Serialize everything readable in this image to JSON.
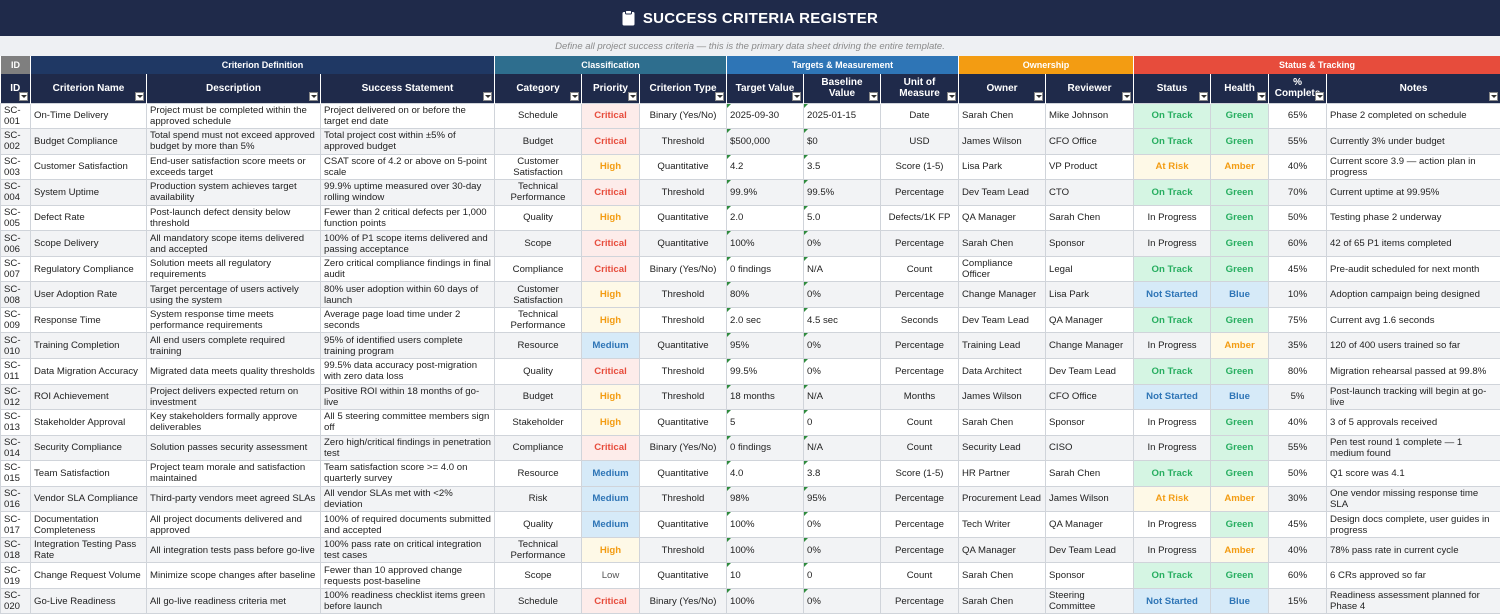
{
  "header": {
    "title": "SUCCESS CRITERIA REGISTER",
    "subtitle": "Define all project success criteria — this is the primary data sheet driving the entire template."
  },
  "groups": [
    {
      "label": "ID",
      "color": "#7f7f7f"
    },
    {
      "label": "Criterion Definition",
      "color": "#1f3864"
    },
    {
      "label": "Classification",
      "color": "#2e6e8e"
    },
    {
      "label": "Targets & Measurement",
      "color": "#2e75b6"
    },
    {
      "label": "Ownership",
      "color": "#f39c12"
    },
    {
      "label": "Status & Tracking",
      "color": "#e74c3c"
    }
  ],
  "columns": [
    "ID",
    "Criterion Name",
    "Description",
    "Success Statement",
    "Category",
    "Priority",
    "Criterion Type",
    "Target Value",
    "Baseline Value",
    "Unit of Measure",
    "Owner",
    "Reviewer",
    "Status",
    "Health",
    "% Complete",
    "Notes"
  ],
  "cell_colors": {
    "Critical": [
      "#e74c3c",
      "#fdecea"
    ],
    "High": [
      "#f39c12",
      "#fef9e7"
    ],
    "Medium": [
      "#2e75b6",
      "#d6eaf8"
    ],
    "Low": [
      "#555555",
      ""
    ],
    "On Track": [
      "#27ae60",
      "#d5f5e3"
    ],
    "At Risk": [
      "#f39c12",
      "#fef9e7"
    ],
    "Not Started": [
      "#2e75b6",
      "#d6eaf8"
    ],
    "Green": [
      "#27ae60",
      "#d5f5e3"
    ],
    "Amber": [
      "#f39c12",
      "#fef9e7"
    ],
    "Blue": [
      "#2e75b6",
      "#d6eaf8"
    ]
  },
  "table": {
    "rows": [
      [
        "SC-001",
        "On-Time Delivery",
        "Project must be completed within the approved schedule",
        "Project delivered on or before the target end date",
        "Schedule",
        "Critical",
        "Binary (Yes/No)",
        "2025-09-30",
        "2025-01-15",
        "Date",
        "Sarah Chen",
        "Mike Johnson",
        "On Track",
        "Green",
        "65%",
        "Phase 2 completed on schedule"
      ],
      [
        "SC-002",
        "Budget Compliance",
        "Total spend must not exceed approved budget by more than 5%",
        "Total project cost within ±5% of approved budget",
        "Budget",
        "Critical",
        "Threshold",
        "$500,000",
        "$0",
        "USD",
        "James Wilson",
        "CFO Office",
        "On Track",
        "Green",
        "55%",
        "Currently 3% under budget"
      ],
      [
        "SC-003",
        "Customer Satisfaction",
        "End-user satisfaction score meets or exceeds target",
        "CSAT score of 4.2 or above on 5-point scale",
        "Customer Satisfaction",
        "High",
        "Quantitative",
        "4.2",
        "3.5",
        "Score (1-5)",
        "Lisa Park",
        "VP Product",
        "At Risk",
        "Amber",
        "40%",
        "Current score 3.9 — action plan in progress"
      ],
      [
        "SC-004",
        "System Uptime",
        "Production system achieves target availability",
        "99.9% uptime measured over 30-day rolling window",
        "Technical Performance",
        "Critical",
        "Threshold",
        "99.9%",
        "99.5%",
        "Percentage",
        "Dev Team Lead",
        "CTO",
        "On Track",
        "Green",
        "70%",
        "Current uptime at 99.95%"
      ],
      [
        "SC-005",
        "Defect Rate",
        "Post-launch defect density below threshold",
        "Fewer than 2 critical defects per 1,000 function points",
        "Quality",
        "High",
        "Quantitative",
        "2.0",
        "5.0",
        "Defects/1K FP",
        "QA Manager",
        "Sarah Chen",
        "In Progress",
        "Green",
        "50%",
        "Testing phase 2 underway"
      ],
      [
        "SC-006",
        "Scope Delivery",
        "All mandatory scope items delivered and accepted",
        "100% of P1 scope items delivered and passing acceptance",
        "Scope",
        "Critical",
        "Quantitative",
        "100%",
        "0%",
        "Percentage",
        "Sarah Chen",
        "Sponsor",
        "In Progress",
        "Green",
        "60%",
        "42 of 65 P1 items completed"
      ],
      [
        "SC-007",
        "Regulatory Compliance",
        "Solution meets all regulatory requirements",
        "Zero critical compliance findings in final audit",
        "Compliance",
        "Critical",
        "Binary (Yes/No)",
        "0 findings",
        "N/A",
        "Count",
        "Compliance Officer",
        "Legal",
        "On Track",
        "Green",
        "45%",
        "Pre-audit scheduled for next month"
      ],
      [
        "SC-008",
        "User Adoption Rate",
        "Target percentage of users actively using the system",
        "80% user adoption within 60 days of launch",
        "Customer Satisfaction",
        "High",
        "Threshold",
        "80%",
        "0%",
        "Percentage",
        "Change Manager",
        "Lisa Park",
        "Not Started",
        "Blue",
        "10%",
        "Adoption campaign being designed"
      ],
      [
        "SC-009",
        "Response Time",
        "System response time meets performance requirements",
        "Average page load time under 2 seconds",
        "Technical Performance",
        "High",
        "Threshold",
        "2.0 sec",
        "4.5 sec",
        "Seconds",
        "Dev Team Lead",
        "QA Manager",
        "On Track",
        "Green",
        "75%",
        "Current avg 1.6 seconds"
      ],
      [
        "SC-010",
        "Training Completion",
        "All end users complete required training",
        "95% of identified users complete training program",
        "Resource",
        "Medium",
        "Quantitative",
        "95%",
        "0%",
        "Percentage",
        "Training Lead",
        "Change Manager",
        "In Progress",
        "Amber",
        "35%",
        "120 of 400 users trained so far"
      ],
      [
        "SC-011",
        "Data Migration Accuracy",
        "Migrated data meets quality thresholds",
        "99.5% data accuracy post-migration with zero data loss",
        "Quality",
        "Critical",
        "Threshold",
        "99.5%",
        "0%",
        "Percentage",
        "Data Architect",
        "Dev Team Lead",
        "On Track",
        "Green",
        "80%",
        "Migration rehearsal passed at 99.8%"
      ],
      [
        "SC-012",
        "ROI Achievement",
        "Project delivers expected return on investment",
        "Positive ROI within 18 months of go-live",
        "Budget",
        "High",
        "Threshold",
        "18 months",
        "N/A",
        "Months",
        "James Wilson",
        "CFO Office",
        "Not Started",
        "Blue",
        "5%",
        "Post-launch tracking will begin at go-live"
      ],
      [
        "SC-013",
        "Stakeholder Approval",
        "Key stakeholders formally approve deliverables",
        "All 5 steering committee members sign off",
        "Stakeholder",
        "High",
        "Quantitative",
        "5",
        "0",
        "Count",
        "Sarah Chen",
        "Sponsor",
        "In Progress",
        "Green",
        "40%",
        "3 of 5 approvals received"
      ],
      [
        "SC-014",
        "Security Compliance",
        "Solution passes security assessment",
        "Zero high/critical findings in penetration test",
        "Compliance",
        "Critical",
        "Binary (Yes/No)",
        "0 findings",
        "N/A",
        "Count",
        "Security Lead",
        "CISO",
        "In Progress",
        "Green",
        "55%",
        "Pen test round 1 complete — 1 medium found"
      ],
      [
        "SC-015",
        "Team Satisfaction",
        "Project team morale and satisfaction maintained",
        "Team satisfaction score >= 4.0 on quarterly survey",
        "Resource",
        "Medium",
        "Quantitative",
        "4.0",
        "3.8",
        "Score (1-5)",
        "HR Partner",
        "Sarah Chen",
        "On Track",
        "Green",
        "50%",
        "Q1 score was 4.1"
      ],
      [
        "SC-016",
        "Vendor SLA Compliance",
        "Third-party vendors meet agreed SLAs",
        "All vendor SLAs met with <2% deviation",
        "Risk",
        "Medium",
        "Threshold",
        "98%",
        "95%",
        "Percentage",
        "Procurement Lead",
        "James Wilson",
        "At Risk",
        "Amber",
        "30%",
        "One vendor missing response time SLA"
      ],
      [
        "SC-017",
        "Documentation Completeness",
        "All project documents delivered and approved",
        "100% of required documents submitted and accepted",
        "Quality",
        "Medium",
        "Quantitative",
        "100%",
        "0%",
        "Percentage",
        "Tech Writer",
        "QA Manager",
        "In Progress",
        "Green",
        "45%",
        "Design docs complete, user guides in progress"
      ],
      [
        "SC-018",
        "Integration Testing Pass Rate",
        "All integration tests pass before go-live",
        "100% pass rate on critical integration test cases",
        "Technical Performance",
        "High",
        "Threshold",
        "100%",
        "0%",
        "Percentage",
        "QA Manager",
        "Dev Team Lead",
        "In Progress",
        "Amber",
        "40%",
        "78% pass rate in current cycle"
      ],
      [
        "SC-019",
        "Change Request Volume",
        "Minimize scope changes after baseline",
        "Fewer than 10 approved change requests post-baseline",
        "Scope",
        "Low",
        "Quantitative",
        "10",
        "0",
        "Count",
        "Sarah Chen",
        "Sponsor",
        "On Track",
        "Green",
        "60%",
        "6 CRs approved so far"
      ],
      [
        "SC-020",
        "Go-Live Readiness",
        "All go-live readiness criteria met",
        "100% readiness checklist items green before launch",
        "Schedule",
        "Critical",
        "Binary (Yes/No)",
        "100%",
        "0%",
        "Percentage",
        "Sarah Chen",
        "Steering Committee",
        "Not Started",
        "Blue",
        "15%",
        "Readiness assessment planned for Phase 4"
      ]
    ]
  }
}
